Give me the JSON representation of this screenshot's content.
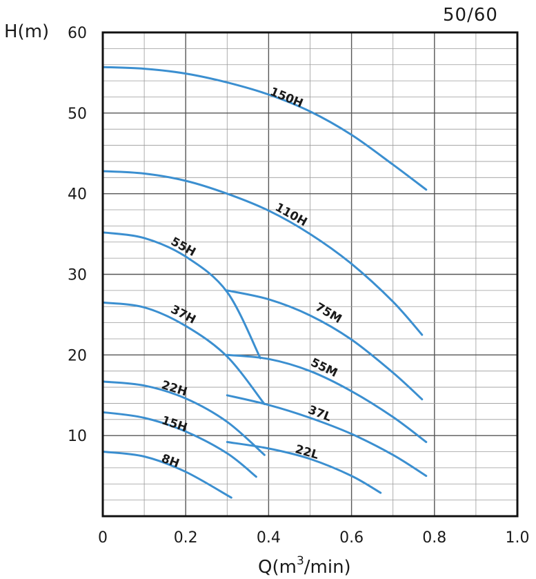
{
  "corner_label": "50/60",
  "chart_data": {
    "type": "line",
    "title": "",
    "xlabel": "Q(m",
    "xlabel_sup": "3",
    "xlabel_tail": "/min)",
    "ylabel": "H(m)",
    "xlim": [
      0,
      1.0
    ],
    "ylim": [
      0,
      60
    ],
    "x_ticks": [
      "0",
      "0.2",
      "0.4",
      "0.6",
      "0.8",
      "1.0"
    ],
    "y_ticks": [
      "10",
      "20",
      "30",
      "40",
      "50",
      "60"
    ],
    "grid": true,
    "line_color": "#3b8fd0",
    "series": [
      {
        "name": "150H",
        "x": [
          0,
          0.1,
          0.2,
          0.3,
          0.4,
          0.5,
          0.6,
          0.7,
          0.78
        ],
        "y": [
          55.7,
          55.5,
          54.9,
          53.8,
          52.3,
          50.2,
          47.3,
          43.6,
          40.5
        ],
        "label_x": 0.44,
        "label_y": 51.5
      },
      {
        "name": "110H",
        "x": [
          0,
          0.1,
          0.2,
          0.3,
          0.4,
          0.5,
          0.6,
          0.7,
          0.77
        ],
        "y": [
          42.8,
          42.5,
          41.6,
          40.0,
          37.9,
          35.0,
          31.3,
          26.6,
          22.5
        ],
        "label_x": 0.45,
        "label_y": 37.0
      },
      {
        "name": "55H",
        "x": [
          0,
          0.1,
          0.2,
          0.3,
          0.38
        ],
        "y": [
          35.2,
          34.5,
          32.2,
          27.8,
          19.6
        ],
        "label_x": 0.19,
        "label_y": 33.0
      },
      {
        "name": "37H",
        "x": [
          0,
          0.1,
          0.2,
          0.3,
          0.39
        ],
        "y": [
          26.5,
          25.9,
          23.6,
          19.8,
          13.9
        ],
        "label_x": 0.19,
        "label_y": 24.6
      },
      {
        "name": "22H",
        "x": [
          0,
          0.1,
          0.2,
          0.3,
          0.39
        ],
        "y": [
          16.7,
          16.2,
          14.6,
          11.7,
          7.6
        ],
        "label_x": 0.17,
        "label_y": 15.4
      },
      {
        "name": "15H",
        "x": [
          0,
          0.1,
          0.2,
          0.3,
          0.37
        ],
        "y": [
          12.9,
          12.2,
          10.5,
          7.8,
          4.9
        ],
        "label_x": 0.17,
        "label_y": 11.0
      },
      {
        "name": "8H",
        "x": [
          0,
          0.1,
          0.2,
          0.31
        ],
        "y": [
          8.0,
          7.4,
          5.5,
          2.3
        ],
        "label_x": 0.16,
        "label_y": 6.4
      },
      {
        "name": "75M",
        "x": [
          0.3,
          0.4,
          0.5,
          0.6,
          0.7,
          0.77
        ],
        "y": [
          28.0,
          26.9,
          24.9,
          21.9,
          17.8,
          14.5
        ],
        "label_x": 0.54,
        "label_y": 24.8
      },
      {
        "name": "55M",
        "x": [
          0.3,
          0.4,
          0.5,
          0.6,
          0.7,
          0.78
        ],
        "y": [
          20.0,
          19.5,
          18.0,
          15.5,
          12.3,
          9.2
        ],
        "label_x": 0.53,
        "label_y": 18.0
      },
      {
        "name": "37L",
        "x": [
          0.3,
          0.4,
          0.5,
          0.6,
          0.7,
          0.78
        ],
        "y": [
          15.0,
          13.8,
          12.2,
          10.2,
          7.6,
          5.0
        ],
        "label_x": 0.52,
        "label_y": 12.3
      },
      {
        "name": "22L",
        "x": [
          0.3,
          0.4,
          0.5,
          0.6,
          0.67
        ],
        "y": [
          9.2,
          8.4,
          7.1,
          5.0,
          2.9
        ],
        "label_x": 0.49,
        "label_y": 7.5
      }
    ]
  }
}
